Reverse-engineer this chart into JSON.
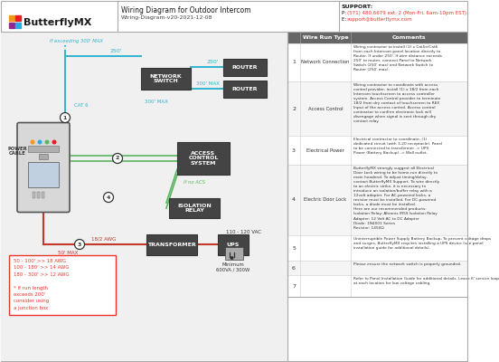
{
  "title": "Wiring Diagram for Outdoor Intercom",
  "subtitle": "Wiring-Diagram-v20-2021-12-08",
  "support_label": "SUPPORT:",
  "support_phone": "P: (571) 480.6679 ext. 2 (Mon-Fri, 6am-10pm EST)",
  "support_email": "E: support@butterflymx.com",
  "support_phone_color": "#e8362a",
  "support_email_color": "#e8362a",
  "bg_color": "#ffffff",
  "cyan": "#30b4d0",
  "green": "#5bb560",
  "red_wire": "#c0392b",
  "red_text": "#e8362a",
  "box_fill_dark": "#4a4a4a",
  "box_fill_light": "#e8e8e8",
  "table_rows": [
    {
      "num": "1",
      "type": "Network Connection",
      "comment": "Wiring contractor to install (1) x Cat5e/Cat6\nfrom each Intercom panel location directly to\nRouter. If under 250'. If wire distance exceeds\n250' to router, connect Panel to Network\nSwitch (250' max) and Network Switch to\nRouter (250' max)."
    },
    {
      "num": "2",
      "type": "Access Control",
      "comment": "Wiring contractor to coordinate with access\ncontrol provider, install (1) x 18/2 from each\nIntercom touchscreen to access controller\nsystem. Access Control provider to terminate\n18/2 from dry contact of touchscreen to REX\nInput of the access control. Access control\ncontractor to confirm electronic lock will\ndisengage when signal is sent through dry\ncontact relay."
    },
    {
      "num": "3",
      "type": "Electrical Power",
      "comment": "Electrical contractor to coordinate: (1)\ndedicated circuit (with 3-20 receptacle). Panel\nto be connected to transformer -> UPS\nPower (Battery Backup) -> Wall outlet."
    },
    {
      "num": "4",
      "type": "Electric Door Lock",
      "comment": "ButterflyMX strongly suggest all Electrical\nDoor Lock wiring to be home-run directly to\nmain headend. To adjust timing/delay,\ncontact ButterflyMX Support. To wire directly\nto an electric strike, it is necessary to\nintroduce an isolation/buffer relay with a\n12volt adapter. For AC-powered locks, a\nresistor must be installed. For DC-powered\nlocks, a diode must be installed.\nHere are our recommended products:\nIsolation Relay: Altronix IR5S Isolation Relay\nAdapter: 12 Volt AC to DC Adapter\nDiode: 1N4001 Series\nResistor: 1450Ω"
    },
    {
      "num": "5",
      "type": "",
      "comment": "Uninterruptible Power Supply Battery Backup. To prevent voltage drops\nand surges, ButterflyMX requires installing a UPS device (see panel\ninstallation guide for additional details)."
    },
    {
      "num": "6",
      "type": "",
      "comment": "Please ensure the network switch is properly grounded."
    },
    {
      "num": "7",
      "type": "",
      "comment": "Refer to Panel Installation Guide for additional details. Leave 6' service loop\nat each location for low voltage cabling."
    }
  ],
  "awg_lines": [
    "50 - 100' >> 18 AWG",
    "100 - 180' >> 14 AWG",
    "180 - 300' >> 12 AWG",
    " ",
    "* If run length",
    "exceeds 200'",
    "consider using",
    "a junction box"
  ]
}
